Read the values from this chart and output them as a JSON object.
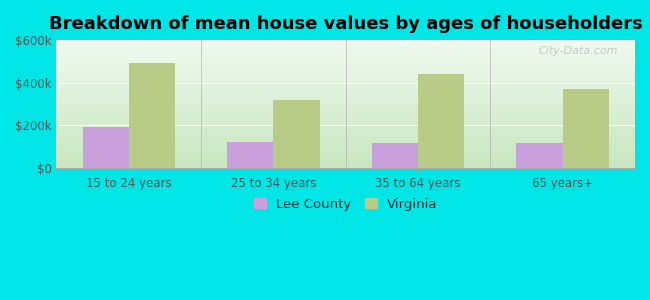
{
  "title": "Breakdown of mean house values by ages of householders",
  "categories": [
    "15 to 24 years",
    "25 to 34 years",
    "35 to 64 years",
    "65 years+"
  ],
  "lee_county": [
    190000,
    120000,
    115000,
    115000
  ],
  "virginia": [
    490000,
    320000,
    440000,
    370000
  ],
  "lee_color": "#c9a0dc",
  "virginia_color": "#b8cc88",
  "background_outer": "#00e5e5",
  "gradient_bottom": "#c8e6c0",
  "gradient_top": "#f0faf0",
  "ylim": [
    0,
    600000
  ],
  "yticks": [
    0,
    200000,
    400000,
    600000
  ],
  "ytick_labels": [
    "$0",
    "$200k",
    "$400k",
    "$600k"
  ],
  "legend_labels": [
    "Lee County",
    "Virginia"
  ],
  "bar_width": 0.32,
  "title_fontsize": 13,
  "tick_fontsize": 8.5,
  "legend_fontsize": 9.5
}
